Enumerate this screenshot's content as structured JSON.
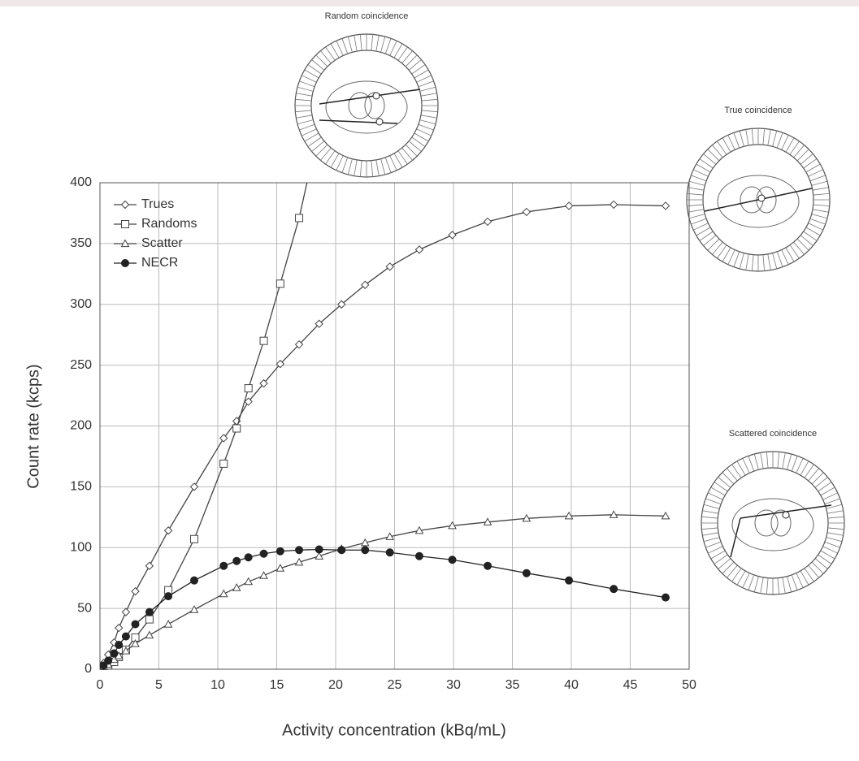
{
  "chart_data": {
    "type": "line",
    "xlabel": "Activity concentration (kBq/mL)",
    "ylabel": "Count rate (kcps)",
    "xlim": [
      0,
      50
    ],
    "xticks": [
      0,
      5,
      10,
      15,
      20,
      25,
      30,
      35,
      40,
      45,
      50
    ],
    "ylim": [
      0,
      400
    ],
    "yticks": [
      0,
      50,
      100,
      150,
      200,
      250,
      300,
      350,
      400
    ],
    "grid": true,
    "legend": "upper left",
    "annotations": [
      {
        "text": "Random coincidence"
      },
      {
        "text": "True coincidence"
      },
      {
        "text": "Scattered coincidence"
      }
    ],
    "series": [
      {
        "name": "Trues",
        "color": "#444",
        "marker": "diamond",
        "x": [
          0.3,
          0.7,
          1.2,
          1.6,
          2.2,
          3.0,
          4.2,
          5.8,
          8.0,
          10.5,
          11.6,
          12.6,
          13.9,
          15.3,
          16.9,
          18.6,
          20.5,
          22.5,
          24.6,
          27.1,
          29.9,
          32.9,
          36.2,
          39.8,
          43.6,
          48.0
        ],
        "values": [
          5,
          12,
          22,
          34,
          47,
          64,
          85,
          114,
          150,
          190,
          204,
          220,
          235,
          251,
          267,
          284,
          300,
          316,
          331,
          345,
          357,
          368,
          376,
          381,
          382,
          381
        ]
      },
      {
        "name": "Randoms",
        "color": "#444",
        "marker": "square",
        "x": [
          0.3,
          0.7,
          1.2,
          1.6,
          2.2,
          3.0,
          4.2,
          5.8,
          8.0,
          10.5,
          11.6,
          12.6,
          13.9,
          15.3,
          16.9,
          17.8
        ],
        "values": [
          1,
          3,
          6,
          10,
          16,
          26,
          41,
          65,
          107,
          169,
          198,
          231,
          270,
          317,
          371,
          410
        ]
      },
      {
        "name": "Scatter",
        "color": "#444",
        "marker": "triangle",
        "x": [
          0.3,
          0.7,
          1.2,
          1.6,
          2.2,
          3.0,
          4.2,
          5.8,
          8.0,
          10.5,
          11.6,
          12.6,
          13.9,
          15.3,
          16.9,
          18.6,
          20.5,
          22.5,
          24.6,
          27.1,
          29.9,
          32.9,
          36.2,
          39.8,
          43.6,
          48.0
        ],
        "values": [
          2,
          4,
          8,
          11,
          15,
          21,
          28,
          37,
          49,
          62,
          67,
          72,
          77,
          83,
          88,
          93,
          99,
          104,
          109,
          114,
          118,
          121,
          124,
          126,
          127,
          126
        ]
      },
      {
        "name": "NECR",
        "color": "#222",
        "marker": "circle",
        "x": [
          0.3,
          0.7,
          1.2,
          1.6,
          2.2,
          3.0,
          4.2,
          5.8,
          8.0,
          10.5,
          11.6,
          12.6,
          13.9,
          15.3,
          16.9,
          18.6,
          20.5,
          22.5,
          24.6,
          27.1,
          29.9,
          32.9,
          36.2,
          39.8,
          43.6,
          48.0
        ],
        "values": [
          3,
          7,
          13,
          20,
          27,
          37,
          47,
          60,
          73,
          85,
          89,
          92,
          95,
          97,
          98,
          98.5,
          98,
          98,
          96,
          93,
          90,
          85,
          79,
          73,
          66,
          59
        ]
      }
    ]
  }
}
